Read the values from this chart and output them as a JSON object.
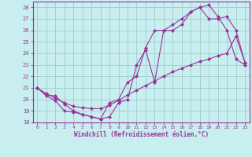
{
  "xlabel": "Windchill (Refroidissement éolien,°C)",
  "bg_color": "#c8eef0",
  "grid_color": "#a0cccc",
  "line_color": "#993399",
  "line1_x": [
    0,
    1,
    2,
    3,
    4,
    5,
    6,
    7,
    8,
    9,
    10,
    11,
    12,
    13,
    14,
    15,
    16,
    17,
    18,
    19,
    20,
    21,
    22,
    23
  ],
  "line1_y": [
    21.0,
    20.4,
    20.3,
    19.6,
    19.0,
    18.7,
    18.5,
    18.3,
    18.5,
    19.7,
    20.0,
    23.0,
    24.3,
    21.5,
    26.0,
    26.0,
    26.5,
    27.6,
    28.0,
    28.2,
    27.2,
    26.0,
    23.5,
    23.0
  ],
  "line2_x": [
    0,
    1,
    2,
    3,
    4,
    5,
    6,
    7,
    8,
    9,
    10,
    11,
    12,
    13,
    14,
    15,
    16,
    17,
    18,
    19,
    20,
    21,
    22,
    23
  ],
  "line2_y": [
    21.0,
    20.5,
    20.1,
    19.7,
    19.4,
    19.3,
    19.2,
    19.2,
    19.5,
    19.9,
    20.4,
    20.8,
    21.2,
    21.6,
    22.0,
    22.4,
    22.7,
    23.0,
    23.3,
    23.5,
    23.8,
    24.0,
    25.5,
    23.2
  ],
  "line3_x": [
    0,
    1,
    2,
    3,
    4,
    5,
    6,
    7,
    8,
    9,
    10,
    11,
    12,
    13,
    14,
    15,
    16,
    17,
    18,
    19,
    20,
    21,
    22,
    23
  ],
  "line3_y": [
    21.0,
    20.3,
    19.9,
    19.0,
    18.9,
    18.7,
    18.5,
    18.3,
    19.7,
    20.0,
    21.5,
    22.0,
    24.5,
    26.0,
    26.0,
    26.5,
    27.0,
    27.6,
    28.0,
    27.0,
    27.0,
    27.2,
    26.0,
    23.2
  ],
  "xlim": [
    -0.5,
    23.5
  ],
  "ylim": [
    18,
    28.5
  ],
  "yticks": [
    18,
    19,
    20,
    21,
    22,
    23,
    24,
    25,
    26,
    27,
    28
  ],
  "xticks": [
    0,
    1,
    2,
    3,
    4,
    5,
    6,
    7,
    8,
    9,
    10,
    11,
    12,
    13,
    14,
    15,
    16,
    17,
    18,
    19,
    20,
    21,
    22,
    23
  ]
}
